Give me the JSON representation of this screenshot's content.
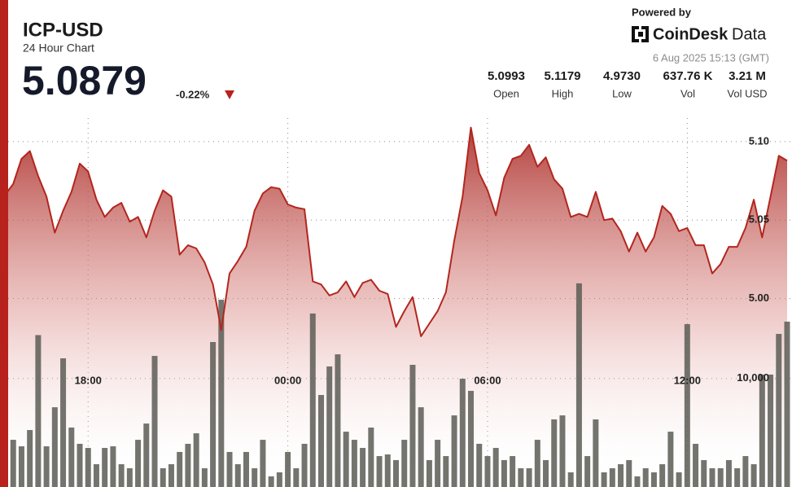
{
  "header": {
    "powered_by": "Powered by",
    "brand": "CoinDesk",
    "brand_suffix": "Data",
    "timestamp": "6 Aug 2025 15:13 (GMT)",
    "price": "5.0879",
    "change": "-0.22%",
    "stats": [
      {
        "value": "5.0993",
        "label": "Open"
      },
      {
        "value": "5.1179",
        "label": "High"
      },
      {
        "value": "4.9730",
        "label": "Low"
      },
      {
        "value": "637.76 K",
        "label": "Vol"
      },
      {
        "value": "3.21 M",
        "label": "Vol USD"
      }
    ]
  },
  "chart_data": {
    "type": "line",
    "title": "ICP-USD",
    "subtitle": "24 Hour Chart",
    "categories": [
      null,
      null,
      null,
      null,
      null,
      null,
      null,
      null,
      null,
      null,
      "18:00",
      null,
      null,
      null,
      null,
      null,
      null,
      null,
      null,
      null,
      null,
      null,
      null,
      null,
      null,
      null,
      null,
      null,
      null,
      null,
      null,
      null,
      null,
      null,
      "00:00",
      null,
      null,
      null,
      null,
      null,
      null,
      null,
      null,
      null,
      null,
      null,
      null,
      null,
      null,
      null,
      null,
      null,
      null,
      null,
      null,
      null,
      null,
      null,
      "06:00",
      null,
      null,
      null,
      null,
      null,
      null,
      null,
      null,
      null,
      null,
      null,
      null,
      null,
      null,
      null,
      null,
      null,
      null,
      null,
      null,
      null,
      null,
      null,
      "12:00",
      null,
      null,
      null,
      null,
      null,
      null,
      null,
      null,
      null,
      null,
      null,
      null
    ],
    "series": [
      {
        "type": "line",
        "color": "#b3261e",
        "values": [
          5.066,
          5.073,
          5.089,
          5.094,
          5.078,
          5.065,
          5.042,
          5.056,
          5.068,
          5.086,
          5.081,
          5.063,
          5.052,
          5.058,
          5.061,
          5.049,
          5.052,
          5.039,
          5.056,
          5.069,
          5.065,
          5.028,
          5.034,
          5.032,
          5.023,
          5.009,
          4.98,
          5.016,
          5.024,
          5.033,
          5.056,
          5.067,
          5.071,
          5.07,
          5.06,
          5.058,
          5.057,
          5.011,
          5.009,
          5.002,
          5.004,
          5.011,
          5.001,
          5.01,
          5.012,
          5.005,
          5.003,
          4.982,
          4.992,
          5.001,
          4.976,
          4.984,
          4.992,
          5.004,
          5.037,
          5.065,
          5.109,
          5.08,
          5.069,
          5.053,
          5.077,
          5.089,
          5.091,
          5.098,
          5.084,
          5.09,
          5.076,
          5.07,
          5.052,
          5.054,
          5.052,
          5.068,
          5.05,
          5.051,
          5.043,
          5.03,
          5.042,
          5.03,
          5.039,
          5.059,
          5.054,
          5.043,
          5.045,
          5.034,
          5.034,
          5.016,
          5.022,
          5.033,
          5.033,
          5.045,
          5.063,
          5.039,
          5.065,
          5.091,
          5.0879
        ]
      },
      {
        "type": "bar",
        "axis": "y2",
        "color": "#5c5c55",
        "values": [
          3400,
          4350,
          3750,
          5250,
          14000,
          3750,
          7350,
          11860,
          5480,
          3980,
          3600,
          2100,
          3600,
          3750,
          2100,
          1730,
          4350,
          5850,
          12080,
          1730,
          2100,
          3230,
          3980,
          4950,
          1730,
          13360,
          17260,
          3230,
          2100,
          3230,
          1730,
          4350,
          980,
          1350,
          3230,
          1730,
          3980,
          15990,
          8480,
          11110,
          12230,
          5100,
          4350,
          3600,
          5480,
          2850,
          3000,
          2480,
          4350,
          11260,
          7350,
          2480,
          4350,
          2850,
          6600,
          9980,
          8860,
          3980,
          2850,
          3600,
          2480,
          2850,
          1730,
          1730,
          4350,
          2480,
          6230,
          6600,
          1350,
          18770,
          2850,
          6230,
          1350,
          1730,
          2100,
          2480,
          980,
          1730,
          1350,
          2100,
          5100,
          1350,
          15010,
          3980,
          2480,
          1730,
          1730,
          2480,
          1730,
          2850,
          2100,
          10360,
          10360,
          14110,
          15240
        ]
      }
    ],
    "ylim": [
      4.88,
      5.115
    ],
    "yticks": [
      {
        "value": 5,
        "label": "5.00"
      },
      {
        "value": 5.05,
        "label": "5.05"
      },
      {
        "value": 5.1,
        "label": "5.10"
      }
    ],
    "y2lim": [
      0,
      34000
    ],
    "y2ticks": [
      {
        "value": 10000,
        "label": "10,000"
      }
    ],
    "grid": true
  }
}
